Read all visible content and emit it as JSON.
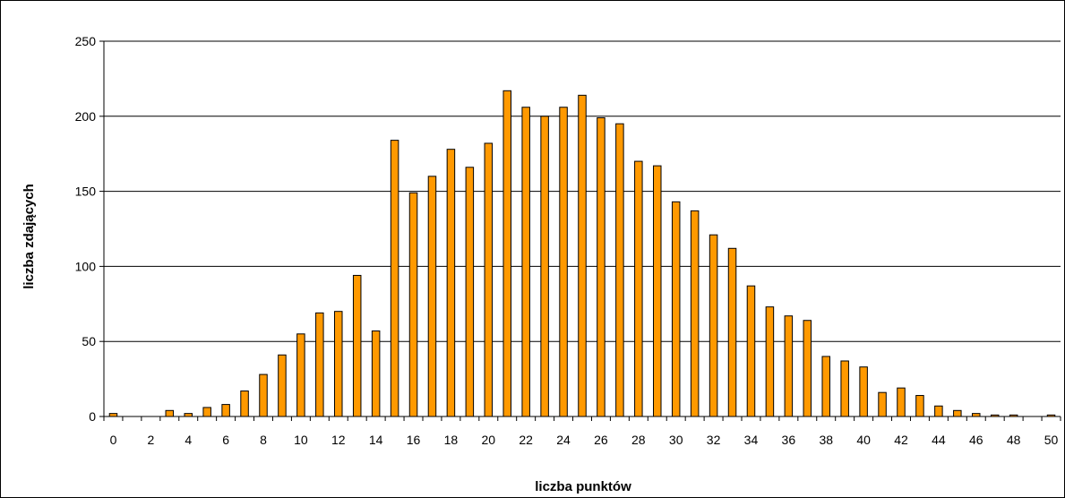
{
  "chart_data": {
    "type": "bar",
    "title": "",
    "xlabel": "liczba punktów",
    "ylabel": "liczba zdających",
    "ylim": [
      0,
      250
    ],
    "yticks": [
      0,
      50,
      100,
      150,
      200,
      250
    ],
    "grid": true,
    "legend": "none",
    "x": [
      0,
      1,
      2,
      3,
      4,
      5,
      6,
      7,
      8,
      9,
      10,
      11,
      12,
      13,
      14,
      15,
      16,
      17,
      18,
      19,
      20,
      21,
      22,
      23,
      24,
      25,
      26,
      27,
      28,
      29,
      30,
      31,
      32,
      33,
      34,
      35,
      36,
      37,
      38,
      39,
      40,
      41,
      42,
      43,
      44,
      45,
      46,
      47,
      48,
      49,
      50
    ],
    "xtick_labels": [
      "0",
      "2",
      "4",
      "6",
      "8",
      "10",
      "12",
      "14",
      "16",
      "18",
      "20",
      "22",
      "24",
      "26",
      "28",
      "30",
      "32",
      "34",
      "36",
      "38",
      "40",
      "42",
      "44",
      "46",
      "48",
      "50"
    ],
    "values": [
      2,
      0,
      0,
      4,
      2,
      6,
      8,
      17,
      28,
      41,
      55,
      69,
      70,
      94,
      57,
      184,
      149,
      160,
      178,
      166,
      182,
      217,
      206,
      200,
      206,
      214,
      199,
      195,
      170,
      167,
      143,
      137,
      121,
      112,
      87,
      73,
      67,
      64,
      40,
      37,
      33,
      16,
      19,
      14,
      7,
      4,
      2,
      1,
      1,
      0,
      1
    ],
    "colors": {
      "bar": "#FF9900",
      "bar_stroke": "#000000",
      "grid": "#000000"
    }
  }
}
